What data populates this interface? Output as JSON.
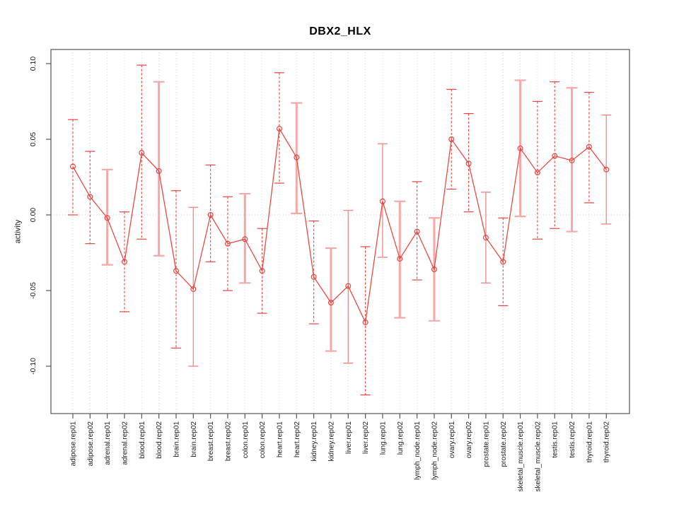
{
  "title": "DBX2_HLX",
  "chart_data": {
    "type": "line",
    "title": "DBX2_HLX",
    "xlabel": "",
    "ylabel": "activity",
    "ylim": [
      -0.13,
      0.11
    ],
    "grid": "dotted vertical gridline per category, dotted horizontal line at 0",
    "legend_position": "none",
    "marker": "open-circle",
    "error_bars": true,
    "yticks": {
      "values": [
        0.1,
        0.05,
        0.0,
        -0.05,
        -0.1
      ],
      "labels": [
        "0.10",
        "0.05",
        "0.00",
        "-0.05",
        "-0.10"
      ]
    },
    "categories": [
      "adipose.rep01",
      "adipose.rep02",
      "adrenal.rep01",
      "adrenal.rep02",
      "blood.rep01",
      "blood.rep02",
      "brain.rep01",
      "brain.rep02",
      "breast.rep01",
      "breast.rep02",
      "colon.rep01",
      "colon.rep02",
      "heart.rep01",
      "heart.rep02",
      "kidney.rep01",
      "kidney.rep02",
      "liver.rep01",
      "liver.rep02",
      "lung.rep01",
      "lung.rep02",
      "lymph_node.rep01",
      "lymph_node.rep02",
      "ovary.rep01",
      "ovary.rep02",
      "prostate.rep01",
      "prostate.rep02",
      "skeletal_muscle.rep01",
      "skeletal_muscle.rep02",
      "testis.rep01",
      "testis.rep02",
      "thyroid.rep01",
      "thyroid.rep02"
    ],
    "series": [
      {
        "name": "activity",
        "values": [
          0.032,
          0.012,
          -0.002,
          -0.031,
          0.041,
          0.029,
          -0.037,
          -0.049,
          0.0,
          -0.019,
          -0.016,
          -0.037,
          0.057,
          0.038,
          -0.041,
          -0.058,
          -0.047,
          -0.071,
          0.009,
          -0.029,
          -0.011,
          -0.036,
          0.05,
          0.034,
          -0.015,
          -0.031,
          0.044,
          0.028,
          0.039,
          0.036,
          0.045,
          0.03
        ],
        "ci_low": [
          0.0,
          -0.019,
          -0.033,
          -0.064,
          -0.016,
          -0.027,
          -0.088,
          -0.1,
          -0.031,
          -0.05,
          -0.045,
          -0.065,
          0.021,
          0.001,
          -0.072,
          -0.09,
          -0.098,
          -0.119,
          -0.028,
          -0.068,
          -0.043,
          -0.07,
          0.017,
          0.002,
          -0.045,
          -0.06,
          -0.001,
          -0.016,
          -0.009,
          -0.011,
          0.008,
          -0.006
        ],
        "ci_high": [
          0.063,
          0.042,
          0.03,
          0.002,
          0.099,
          0.088,
          0.016,
          0.005,
          0.033,
          0.012,
          0.014,
          -0.009,
          0.094,
          0.074,
          -0.004,
          -0.022,
          0.003,
          -0.021,
          0.047,
          0.009,
          0.022,
          -0.002,
          0.083,
          0.067,
          0.015,
          -0.002,
          0.089,
          0.075,
          0.088,
          0.084,
          0.081,
          0.066
        ],
        "bar_styles": [
          "dashed",
          "dashed",
          "thick",
          "dashed",
          "dashed",
          "thick",
          "dashed",
          "solid",
          "dashed",
          "dashed",
          "thick",
          "dashed",
          "dashed",
          "thick",
          "dashed",
          "thick",
          "solid",
          "dashed",
          "solid",
          "thick",
          "dashed",
          "thick",
          "dashed",
          "dashed",
          "solid",
          "dashed",
          "thick",
          "dashed",
          "dashed",
          "thick",
          "dashed",
          "solid"
        ]
      }
    ],
    "colors": {
      "line": "#e8433d",
      "marker": "#e8433d",
      "bar_dashed": "#e8433d",
      "bar_solid": "#f0908e",
      "bar_thick": "#f5a9a7",
      "grid": "#d6d6d6",
      "zero_line": "#d0d0d0",
      "frame": "#555555",
      "text": "#1a1a1a"
    }
  }
}
